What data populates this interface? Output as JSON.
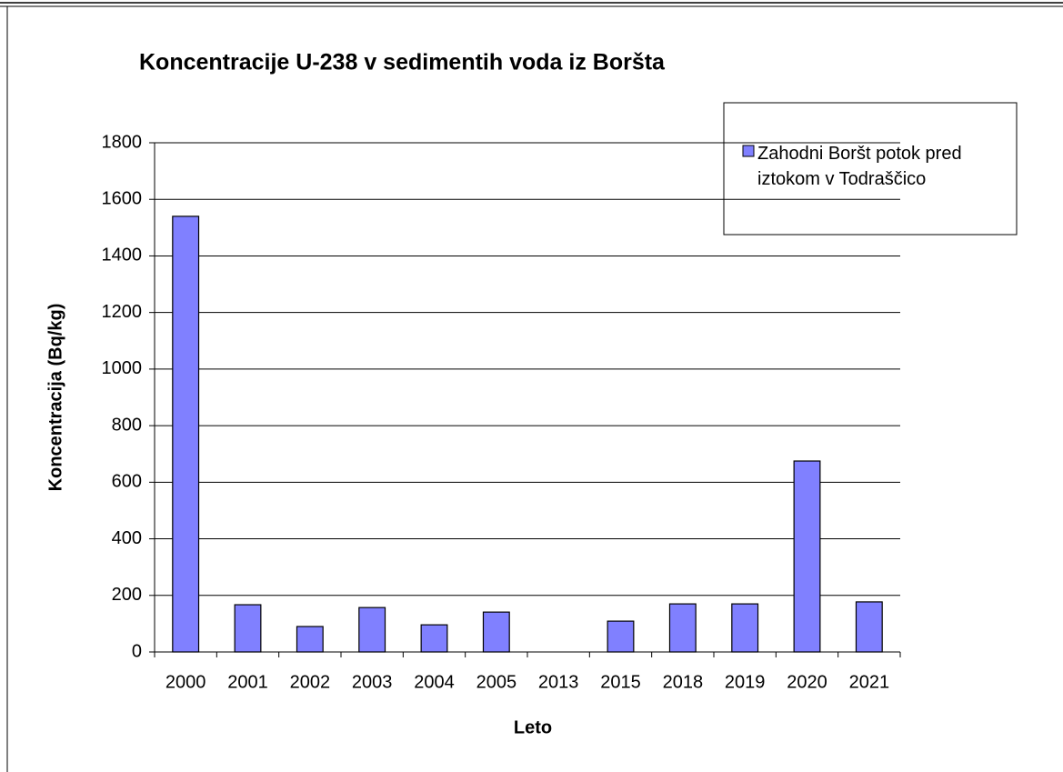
{
  "chart_data": {
    "type": "bar",
    "title": "Koncentracije U-238 v sedimentih voda iz Boršta",
    "x_label": "Leto",
    "y_label": "Koncentracija (Bq/kg)",
    "categories": [
      "2000",
      "2001",
      "2002",
      "2003",
      "2004",
      "2005",
      "2013",
      "2015",
      "2018",
      "2019",
      "2020",
      "2021"
    ],
    "series": [
      {
        "name": "Zahodni Boršt potok pred iztokom v Todraščico",
        "color": "#8080ff",
        "values": [
          1540,
          167,
          90,
          157,
          96,
          141,
          null,
          109,
          170,
          170,
          675,
          177
        ]
      }
    ],
    "ylim": [
      0,
      1800
    ],
    "yticks": [
      0,
      200,
      400,
      600,
      800,
      1000,
      1200,
      1400,
      1600,
      1800
    ],
    "grid": true,
    "legend": "top-right"
  }
}
